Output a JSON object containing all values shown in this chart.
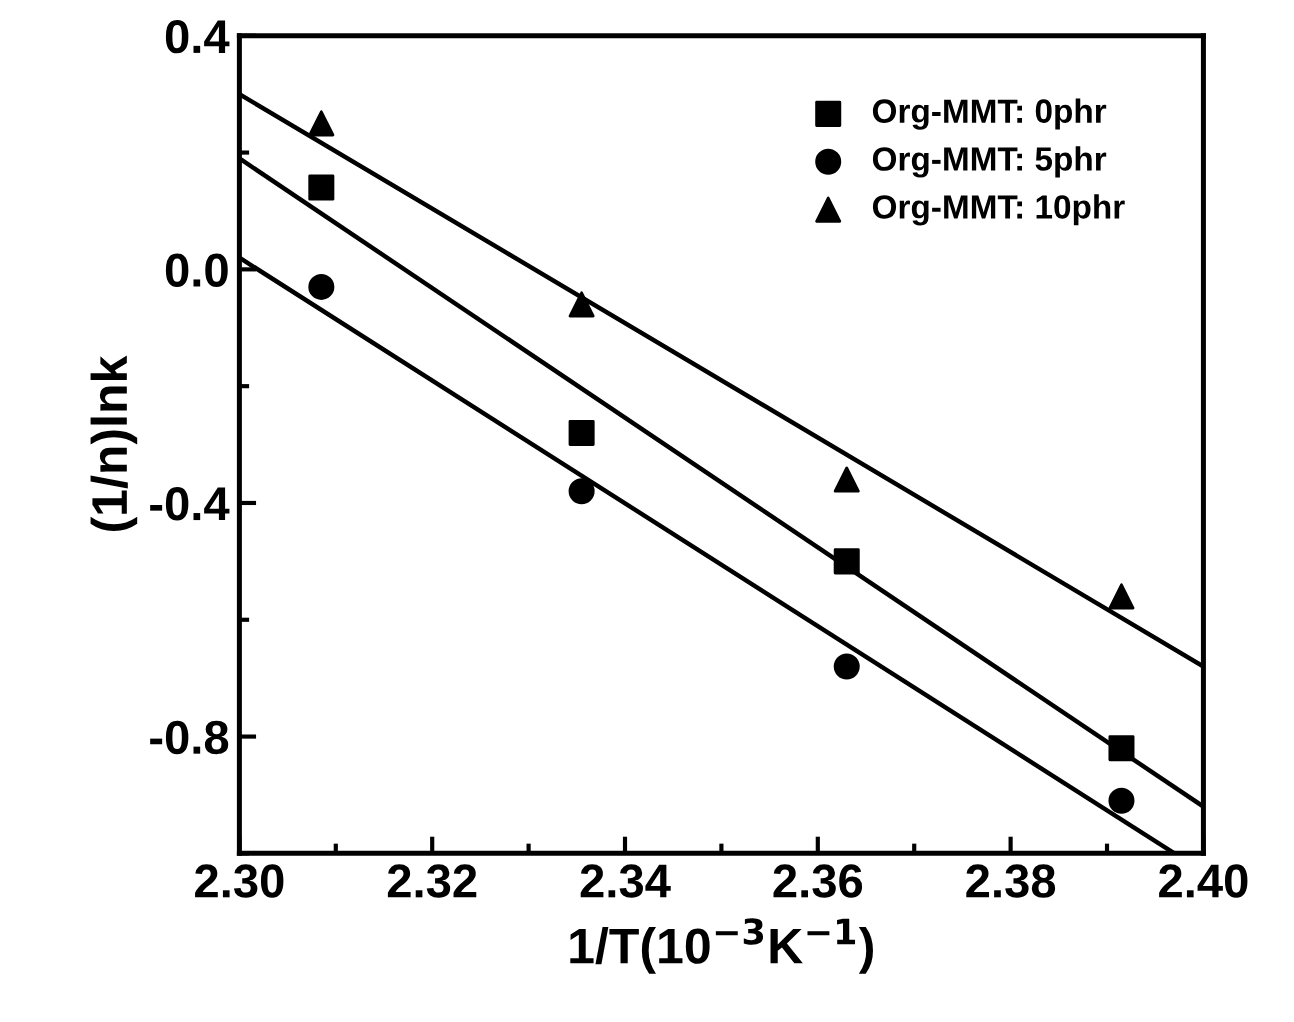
{
  "chart_data": {
    "type": "scatter",
    "xlabel": "1/T(10$^{−3}$K$^{−1}$)",
    "ylabel": "(1/n)lnk",
    "xlim": [
      2.3,
      2.4
    ],
    "xticks": [
      {
        "value": 2.3,
        "label": "2.30"
      },
      2.32,
      2.34,
      2.36,
      2.38,
      {
        "value": 2.4,
        "label": "2.40"
      }
    ],
    "ylim": [
      -1.0,
      0.4
    ],
    "yticks": [
      -0.8,
      -0.4,
      {
        "value": 0.0,
        "label": "0.0"
      },
      0.4
    ],
    "grid": false,
    "legend": "top right",
    "series": [
      {
        "name": "Org-MMT: 0phr",
        "color": "#000000",
        "marker": "square",
        "x": [
          2.3085,
          2.3355,
          2.363,
          2.3915
        ],
        "values": [
          0.14,
          -0.28,
          -0.5,
          -0.82
        ]
      },
      {
        "name": "Org-MMT: 5phr",
        "color": "#000000",
        "marker": "circle",
        "x": [
          2.3085,
          2.3355,
          2.363,
          2.3915
        ],
        "values": [
          -0.03,
          -0.38,
          -0.68,
          -0.91
        ]
      },
      {
        "name": "Org-MMT: 10phr",
        "color": "#000000",
        "marker": "triangle",
        "x": [
          2.3085,
          2.3355,
          2.363,
          2.3915
        ],
        "values": [
          0.25,
          -0.06,
          -0.36,
          -0.56
        ]
      },
      {
        "type": "line",
        "color": "#000000",
        "line_style": "solid",
        "x": [
          2.3,
          2.4
        ],
        "values": [
          0.19,
          -0.92
        ]
      },
      {
        "type": "line",
        "color": "#000000",
        "line_style": "solid",
        "x": [
          2.3,
          2.397
        ],
        "values": [
          0.02,
          -1.0
        ]
      },
      {
        "type": "line",
        "color": "#000000",
        "line_style": "solid",
        "x": [
          2.3,
          2.4
        ],
        "values": [
          0.3,
          -0.68
        ]
      }
    ]
  }
}
